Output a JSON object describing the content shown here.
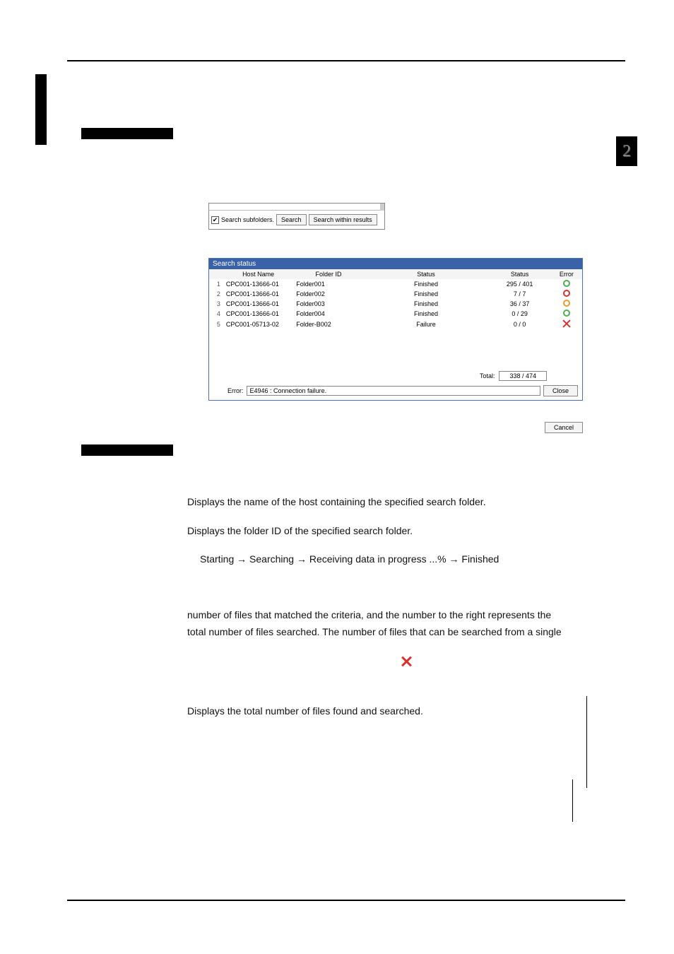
{
  "page_badge": "2",
  "shot1": {
    "checkbox_checked": true,
    "checkbox_label": "Search subfolders.",
    "btn_search": "Search",
    "btn_search_within": "Search within results"
  },
  "shot2": {
    "title": "Search status",
    "columns": [
      "",
      "Host Name",
      "Folder ID",
      "Status",
      "Status",
      "Error"
    ],
    "rows": [
      {
        "idx": "1",
        "host": "CPC001-13666-01",
        "folder": "Folder001",
        "status": "Finished",
        "count": "295 / 401",
        "err_color": "#4bb050",
        "err_type": "ring"
      },
      {
        "idx": "2",
        "host": "CPC001-13666-01",
        "folder": "Folder002",
        "status": "Finished",
        "count": "7 / 7",
        "err_color": "#d93030",
        "err_type": "ring"
      },
      {
        "idx": "3",
        "host": "CPC001-13666-01",
        "folder": "Folder003",
        "status": "Finished",
        "count": "36 / 37",
        "err_color": "#e69d2e",
        "err_type": "ring"
      },
      {
        "idx": "4",
        "host": "CPC001-13666-01",
        "folder": "Folder004",
        "status": "Finished",
        "count": "0 / 29",
        "err_color": "#4bb050",
        "err_type": "ring"
      },
      {
        "idx": "5",
        "host": "CPC001-05713-02",
        "folder": "Folder-B002",
        "status": "Failure",
        "count": "0 / 0",
        "err_color": "#d93030",
        "err_type": "x"
      }
    ],
    "total_label": "Total:",
    "total_value": "338 / 474",
    "error_label": "Error:",
    "error_value": "E4946 : Connection failure.",
    "close_btn": "Close",
    "cancel_btn": "Cancel"
  },
  "defs": {
    "p1": "Displays the name of the host containing the specified search folder.",
    "p2": "Displays the folder ID of the specified search folder.",
    "p3": "Starting → Searching → Receiving data in progress ...% → Finished",
    "p4a": "number of files that matched the criteria, and the number to the right represents the",
    "p4b": "total number of files searched. The number of files that can be searched from a single",
    "p5": "Displays the total number of files found and searched."
  },
  "colors": {
    "titlebar": "#3a62a8",
    "ring_green": "#4bb050",
    "ring_red": "#d93030",
    "ring_amber": "#e69d2e"
  }
}
